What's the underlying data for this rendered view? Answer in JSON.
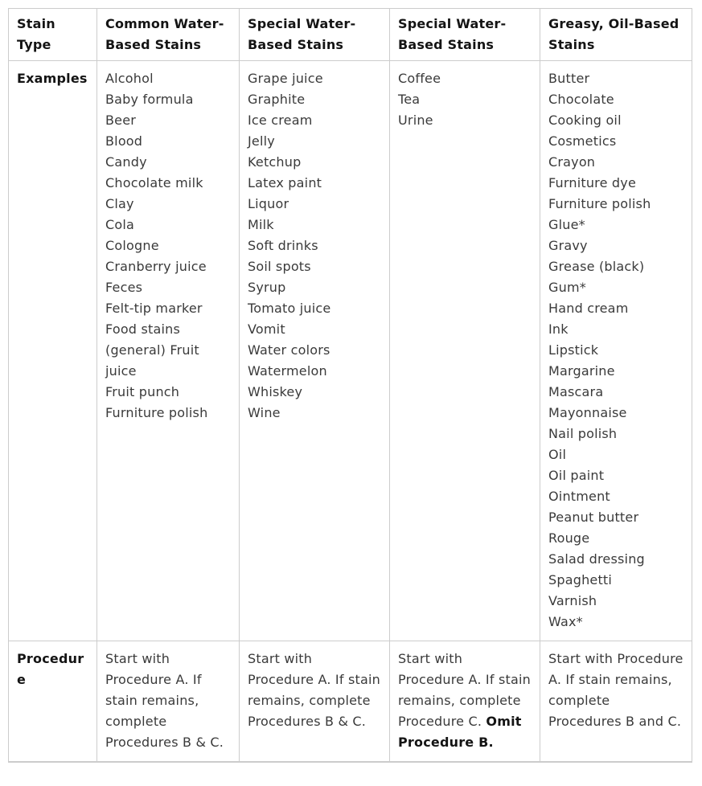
{
  "table": {
    "headers": [
      "Stain Type",
      "Common Water-Based Stains",
      "Special Water-Based Stains",
      "Special Water-Based Stains",
      "Greasy, Oil-Based Stains"
    ],
    "examples": {
      "label": "Examples",
      "common_water_based": [
        "Alcohol",
        "Baby formula",
        "Beer",
        "Blood",
        "Candy",
        "Chocolate milk",
        "Clay",
        "Cola",
        "Cologne",
        "Cranberry juice",
        "Feces",
        "Felt-tip marker",
        "Food stains (general) Fruit juice",
        "Fruit punch",
        "Furniture polish"
      ],
      "special_water_based_1": [
        "Grape juice",
        "Graphite",
        "Ice cream",
        "Jelly",
        "Ketchup",
        "Latex paint",
        "Liquor",
        "Milk",
        "Soft drinks",
        "Soil spots",
        "Syrup",
        "Tomato juice",
        "Vomit",
        "Water colors",
        "Watermelon",
        "Whiskey",
        "Wine"
      ],
      "special_water_based_2": [
        "Coffee",
        "Tea",
        "Urine"
      ],
      "greasy_oil_based": [
        "Butter",
        "Chocolate",
        "Cooking oil",
        "Cosmetics",
        "Crayon",
        "Furniture dye",
        "Furniture polish",
        "Glue*",
        "Gravy",
        "Grease (black)",
        "Gum*",
        "Hand cream",
        "Ink",
        "Lipstick",
        "Margarine",
        "Mascara",
        "Mayonnaise",
        "Nail polish",
        "Oil",
        "Oil paint",
        "Ointment",
        "Peanut butter",
        "Rouge",
        "Salad dressing",
        "Spaghetti",
        "Varnish",
        "Wax*"
      ]
    },
    "procedure": {
      "label": "Procedure",
      "common_water_based": {
        "text": "Start with Procedure A. If stain remains, complete Procedures B & C.",
        "bold": ""
      },
      "special_water_based_1": {
        "text": "Start with Procedure A. If stain remains, complete Procedures B & C.",
        "bold": ""
      },
      "special_water_based_2": {
        "text": "Start with Procedure A. If stain remains, complete Procedure C. ",
        "bold": "Omit Procedure B."
      },
      "greasy_oil_based": {
        "text": "Start with Procedure A. If stain remains, complete Procedures B and C.",
        "bold": ""
      }
    }
  }
}
